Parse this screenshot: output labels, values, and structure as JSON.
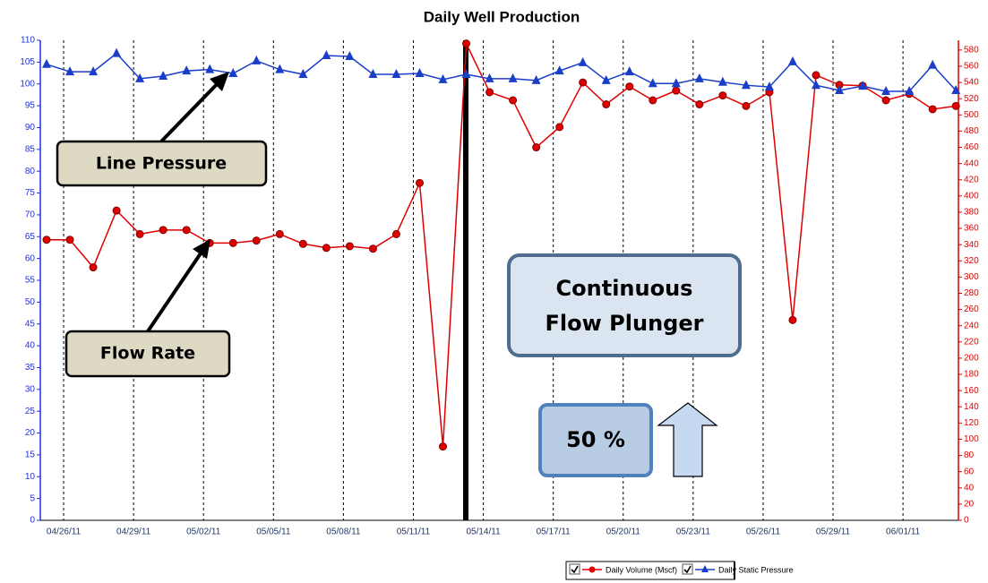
{
  "chart_data": {
    "type": "line",
    "title": "Daily Well Production",
    "categories": [
      null,
      "04/26/11",
      null,
      null,
      "04/29/11",
      null,
      null,
      "05/02/11",
      null,
      null,
      "05/05/11",
      null,
      null,
      "05/08/11",
      null,
      null,
      "05/11/11",
      null,
      null,
      "05/14/11",
      null,
      null,
      "05/17/11",
      null,
      null,
      "05/20/11",
      null,
      null,
      "05/23/11",
      null,
      null,
      "05/26/11",
      null,
      null,
      "05/29/11",
      null,
      null,
      "06/01/11",
      null,
      null
    ],
    "series": [
      {
        "name": "Daily Volume (Mscf)",
        "color": "#e00000",
        "axis": "y2",
        "values": [
          346,
          346,
          312,
          382,
          353,
          358,
          358,
          342,
          342,
          345,
          353,
          341,
          336,
          338,
          335,
          353,
          416,
          91,
          588,
          528,
          518,
          460,
          485,
          540,
          513,
          535,
          518,
          530,
          513,
          524,
          511,
          528,
          247,
          549,
          537,
          536,
          518,
          526,
          507,
          511
        ]
      },
      {
        "name": "Daily Static Pressure",
        "color": "#1a3ec8",
        "values": [
          104.5,
          102.8,
          102.8,
          107,
          101.2,
          101.8,
          103,
          103.3,
          102.4,
          105.3,
          103.3,
          102.2,
          106.5,
          106.3,
          102.2,
          102.2,
          102.4,
          101,
          102.2,
          101.2,
          101.2,
          100.8,
          103,
          104.9,
          100.8,
          102.8,
          100.1,
          100.1,
          101.2,
          100.4,
          99.7,
          99.3,
          105.1,
          99.7,
          98.5,
          99.5,
          98.3,
          98.3,
          104.3,
          98.5
        ]
      }
    ],
    "ylim": [
      0,
      110
    ],
    "yticks": [
      0,
      5,
      10,
      15,
      20,
      25,
      30,
      35,
      40,
      45,
      50,
      55,
      60,
      65,
      70,
      75,
      80,
      85,
      90,
      95,
      100,
      105,
      110
    ],
    "y2lim": [
      0,
      592
    ],
    "y2ticks": [
      0,
      20,
      40,
      60,
      80,
      100,
      120,
      140,
      160,
      180,
      200,
      220,
      240,
      260,
      280,
      300,
      320,
      340,
      360,
      380,
      400,
      420,
      440,
      460,
      480,
      500,
      520,
      540,
      560,
      580
    ],
    "grid": true,
    "legend": "bottom",
    "annotations": {
      "line_pressure": "Line Pressure",
      "flow_rate": "Flow Rate",
      "plunger": [
        "Continuous",
        "Flow Plunger"
      ],
      "percent": "50 %"
    }
  }
}
